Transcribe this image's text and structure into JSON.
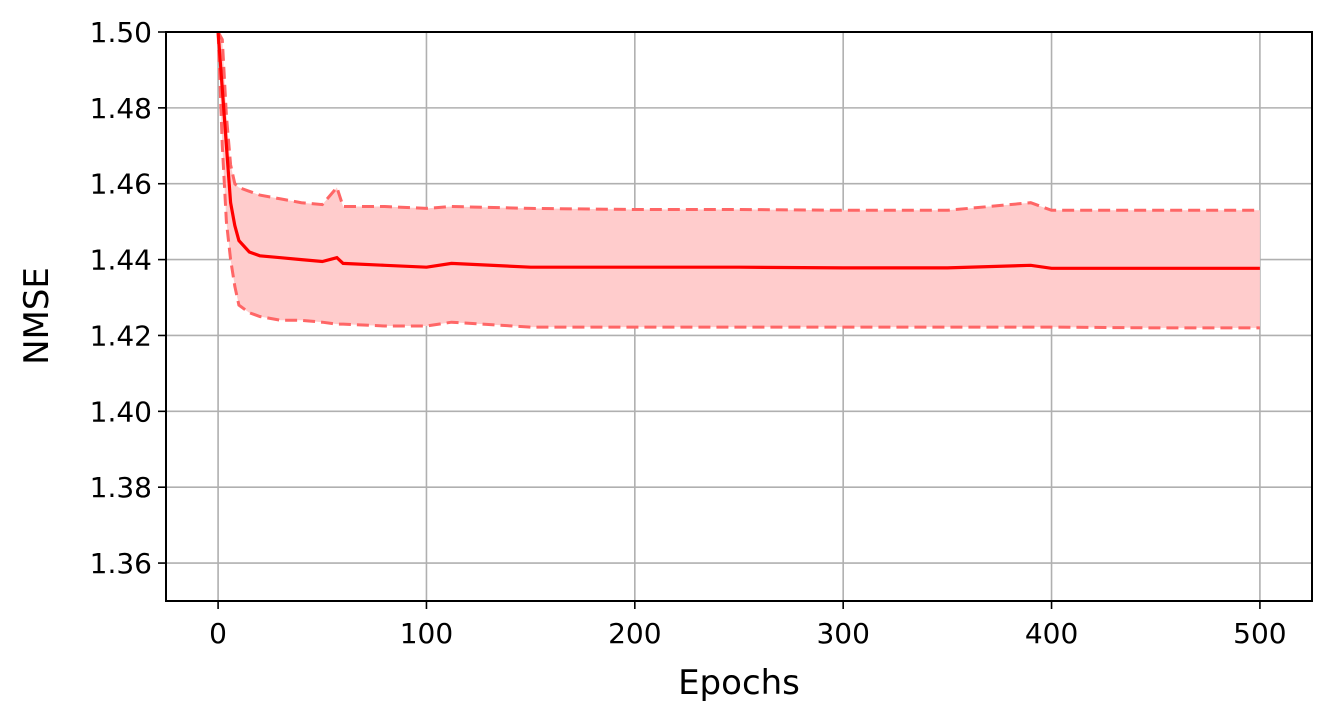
{
  "chart_data": {
    "type": "line",
    "title": "",
    "xlabel": "Epochs",
    "ylabel": "NMSE",
    "xlim": [
      -25,
      525
    ],
    "ylim": [
      1.35,
      1.5
    ],
    "xticks": [
      0,
      100,
      200,
      300,
      400,
      500
    ],
    "xtick_labels": [
      "0",
      "100",
      "200",
      "300",
      "400",
      "500"
    ],
    "yticks": [
      1.36,
      1.38,
      1.4,
      1.42,
      1.44,
      1.46,
      1.48,
      1.5
    ],
    "ytick_labels": [
      "1.36",
      "1.38",
      "1.40",
      "1.42",
      "1.44",
      "1.46",
      "1.48",
      "1.50"
    ],
    "grid": true,
    "legend": "none",
    "colors": {
      "mean": "#ff0000",
      "band_fill": "#ffcccc",
      "band_edge": "#ff6666",
      "grid": "#b0b0b0"
    },
    "x": [
      0,
      2,
      4,
      6,
      8,
      10,
      15,
      20,
      30,
      40,
      50,
      57,
      60,
      80,
      100,
      112,
      150,
      200,
      250,
      300,
      350,
      390,
      400,
      450,
      500
    ],
    "series": [
      {
        "role": "mean",
        "values": [
          1.5,
          1.485,
          1.47,
          1.455,
          1.449,
          1.445,
          1.442,
          1.441,
          1.4405,
          1.44,
          1.4395,
          1.4405,
          1.439,
          1.4385,
          1.438,
          1.439,
          1.438,
          1.438,
          1.438,
          1.4378,
          1.4378,
          1.4385,
          1.4377,
          1.4377,
          1.4377
        ]
      },
      {
        "role": "upper",
        "values": [
          1.5,
          1.498,
          1.478,
          1.465,
          1.46,
          1.459,
          1.458,
          1.457,
          1.456,
          1.455,
          1.4545,
          1.459,
          1.454,
          1.454,
          1.4535,
          1.454,
          1.4535,
          1.4532,
          1.4532,
          1.453,
          1.453,
          1.455,
          1.453,
          1.453,
          1.453
        ]
      },
      {
        "role": "lower",
        "values": [
          1.5,
          1.47,
          1.45,
          1.44,
          1.433,
          1.428,
          1.426,
          1.425,
          1.424,
          1.424,
          1.4235,
          1.423,
          1.423,
          1.4225,
          1.4225,
          1.4235,
          1.4222,
          1.4222,
          1.4222,
          1.4222,
          1.4222,
          1.4222,
          1.4222,
          1.422,
          1.422
        ]
      }
    ]
  }
}
